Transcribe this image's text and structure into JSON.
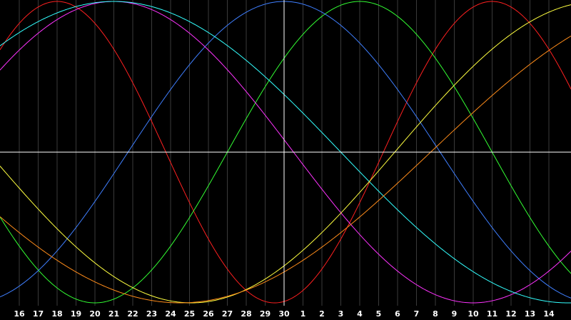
{
  "chart_data": {
    "type": "line",
    "title": "",
    "xlabel": "",
    "ylabel": "",
    "grid": true,
    "x_tick_labels": [
      "16",
      "17",
      "18",
      "19",
      "20",
      "21",
      "22",
      "23",
      "24",
      "25",
      "26",
      "27",
      "28",
      "29",
      "30",
      "1",
      "2",
      "3",
      "4",
      "5",
      "6",
      "7",
      "8",
      "9",
      "10",
      "11",
      "12",
      "13",
      "14"
    ],
    "ylim": [
      -1,
      1
    ],
    "crosshair": {
      "x_label": "30",
      "y": 0
    },
    "series": [
      {
        "color": "#ff2020",
        "phase_index": 25.0,
        "period_days": 23,
        "note_visible": false
      },
      {
        "color": "#33ff33",
        "phase_index": 18.0,
        "period_days": 28,
        "note_visible": false
      },
      {
        "color": "#3f7fff",
        "phase_index": 14.0,
        "period_days": 33,
        "note_visible": false
      },
      {
        "color": "#ff33ff",
        "phase_index": 5.0,
        "period_days": 38,
        "note_visible": false
      },
      {
        "color": "#33ffff",
        "phase_index": 5.0,
        "period_days": 48,
        "note_visible": false
      },
      {
        "color": "#ffff40",
        "phase_index": -12.4,
        "period_days": 43,
        "note_visible": false
      },
      {
        "color": "#ff8c1a",
        "phase_index": -18.0,
        "period_days": 53,
        "note_visible": false
      }
    ]
  }
}
